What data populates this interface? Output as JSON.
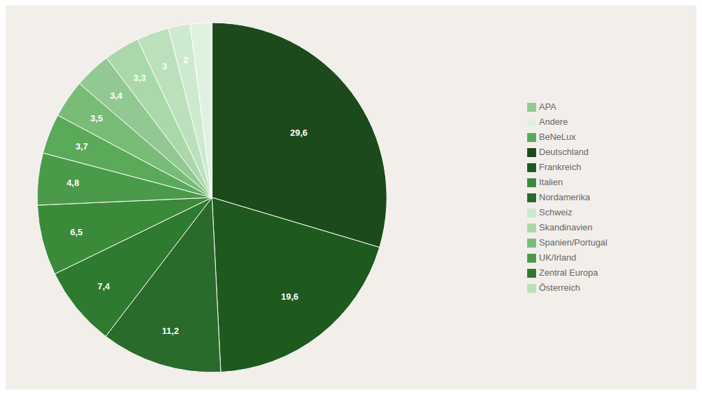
{
  "chart_data": {
    "type": "pie",
    "categories": [
      "Deutschland",
      "Frankreich",
      "Nordamerika",
      "Zentral Europa",
      "Italien",
      "UK/Irland",
      "BeNeLux",
      "Spanien/Portugal",
      "APA",
      "Skandinavien",
      "Österreich",
      "Schweiz",
      "Andere"
    ],
    "values": [
      29.6,
      19.6,
      11.2,
      7.4,
      6.5,
      4.8,
      3.7,
      3.5,
      3.4,
      3.3,
      3.0,
      2.0,
      2.0
    ],
    "value_labels": [
      "29,6",
      "19,6",
      "11,2",
      "7,4",
      "6,5",
      "4,8",
      "3,7",
      "3,5",
      "3,4",
      "3,3",
      "3",
      "2",
      null
    ],
    "colors": [
      "#1c4a1c",
      "#1e5a1e",
      "#2a6a2a",
      "#2e7a2e",
      "#3a8a3a",
      "#4a9a4a",
      "#5aaa5a",
      "#78bc78",
      "#92c892",
      "#aad8aa",
      "#bce0bc",
      "#ceeace",
      "#dff2df"
    ],
    "data_labels": true,
    "legend": "right"
  }
}
